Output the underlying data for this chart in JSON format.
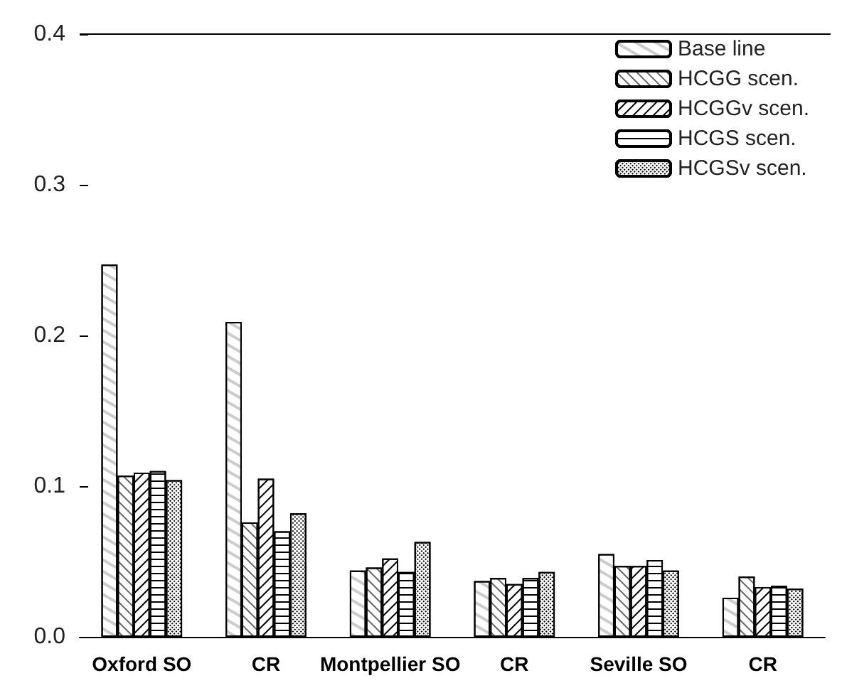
{
  "chart_data": {
    "type": "bar",
    "categories": [
      "Oxford SO",
      "CR",
      "Montpellier SO",
      "CR",
      "Seville SO",
      "CR"
    ],
    "series": [
      {
        "name": "Base line",
        "color": "#ffffff",
        "values": [
          0.247,
          0.209,
          0.044,
          0.037,
          0.055,
          0.026
        ]
      },
      {
        "name": "HCGG scen.",
        "color": "#ffffff",
        "values": [
          0.107,
          0.076,
          0.046,
          0.039,
          0.047,
          0.04
        ]
      },
      {
        "name": "HCGGv scen.",
        "color": "#ffffff",
        "values": [
          0.109,
          0.105,
          0.052,
          0.035,
          0.047,
          0.033
        ]
      },
      {
        "name": "HCGS scen.",
        "color": "#ffffff",
        "values": [
          0.11,
          0.07,
          0.043,
          0.039,
          0.051,
          0.034
        ]
      },
      {
        "name": "HCGSv scen.",
        "color": "#ffffff",
        "values": [
          0.104,
          0.082,
          0.063,
          0.043,
          0.044,
          0.032
        ]
      }
    ],
    "ylim": [
      0,
      0.4
    ],
    "yticks": [
      {
        "value": 0,
        "label": "0.0"
      },
      {
        "value": 0.1,
        "label": "0.1"
      },
      {
        "value": 0.2,
        "label": "0.2"
      },
      {
        "value": 0.3,
        "label": "0.3"
      },
      {
        "value": 0.4,
        "label": "0.4"
      }
    ],
    "grid": false,
    "legend": "top right"
  }
}
